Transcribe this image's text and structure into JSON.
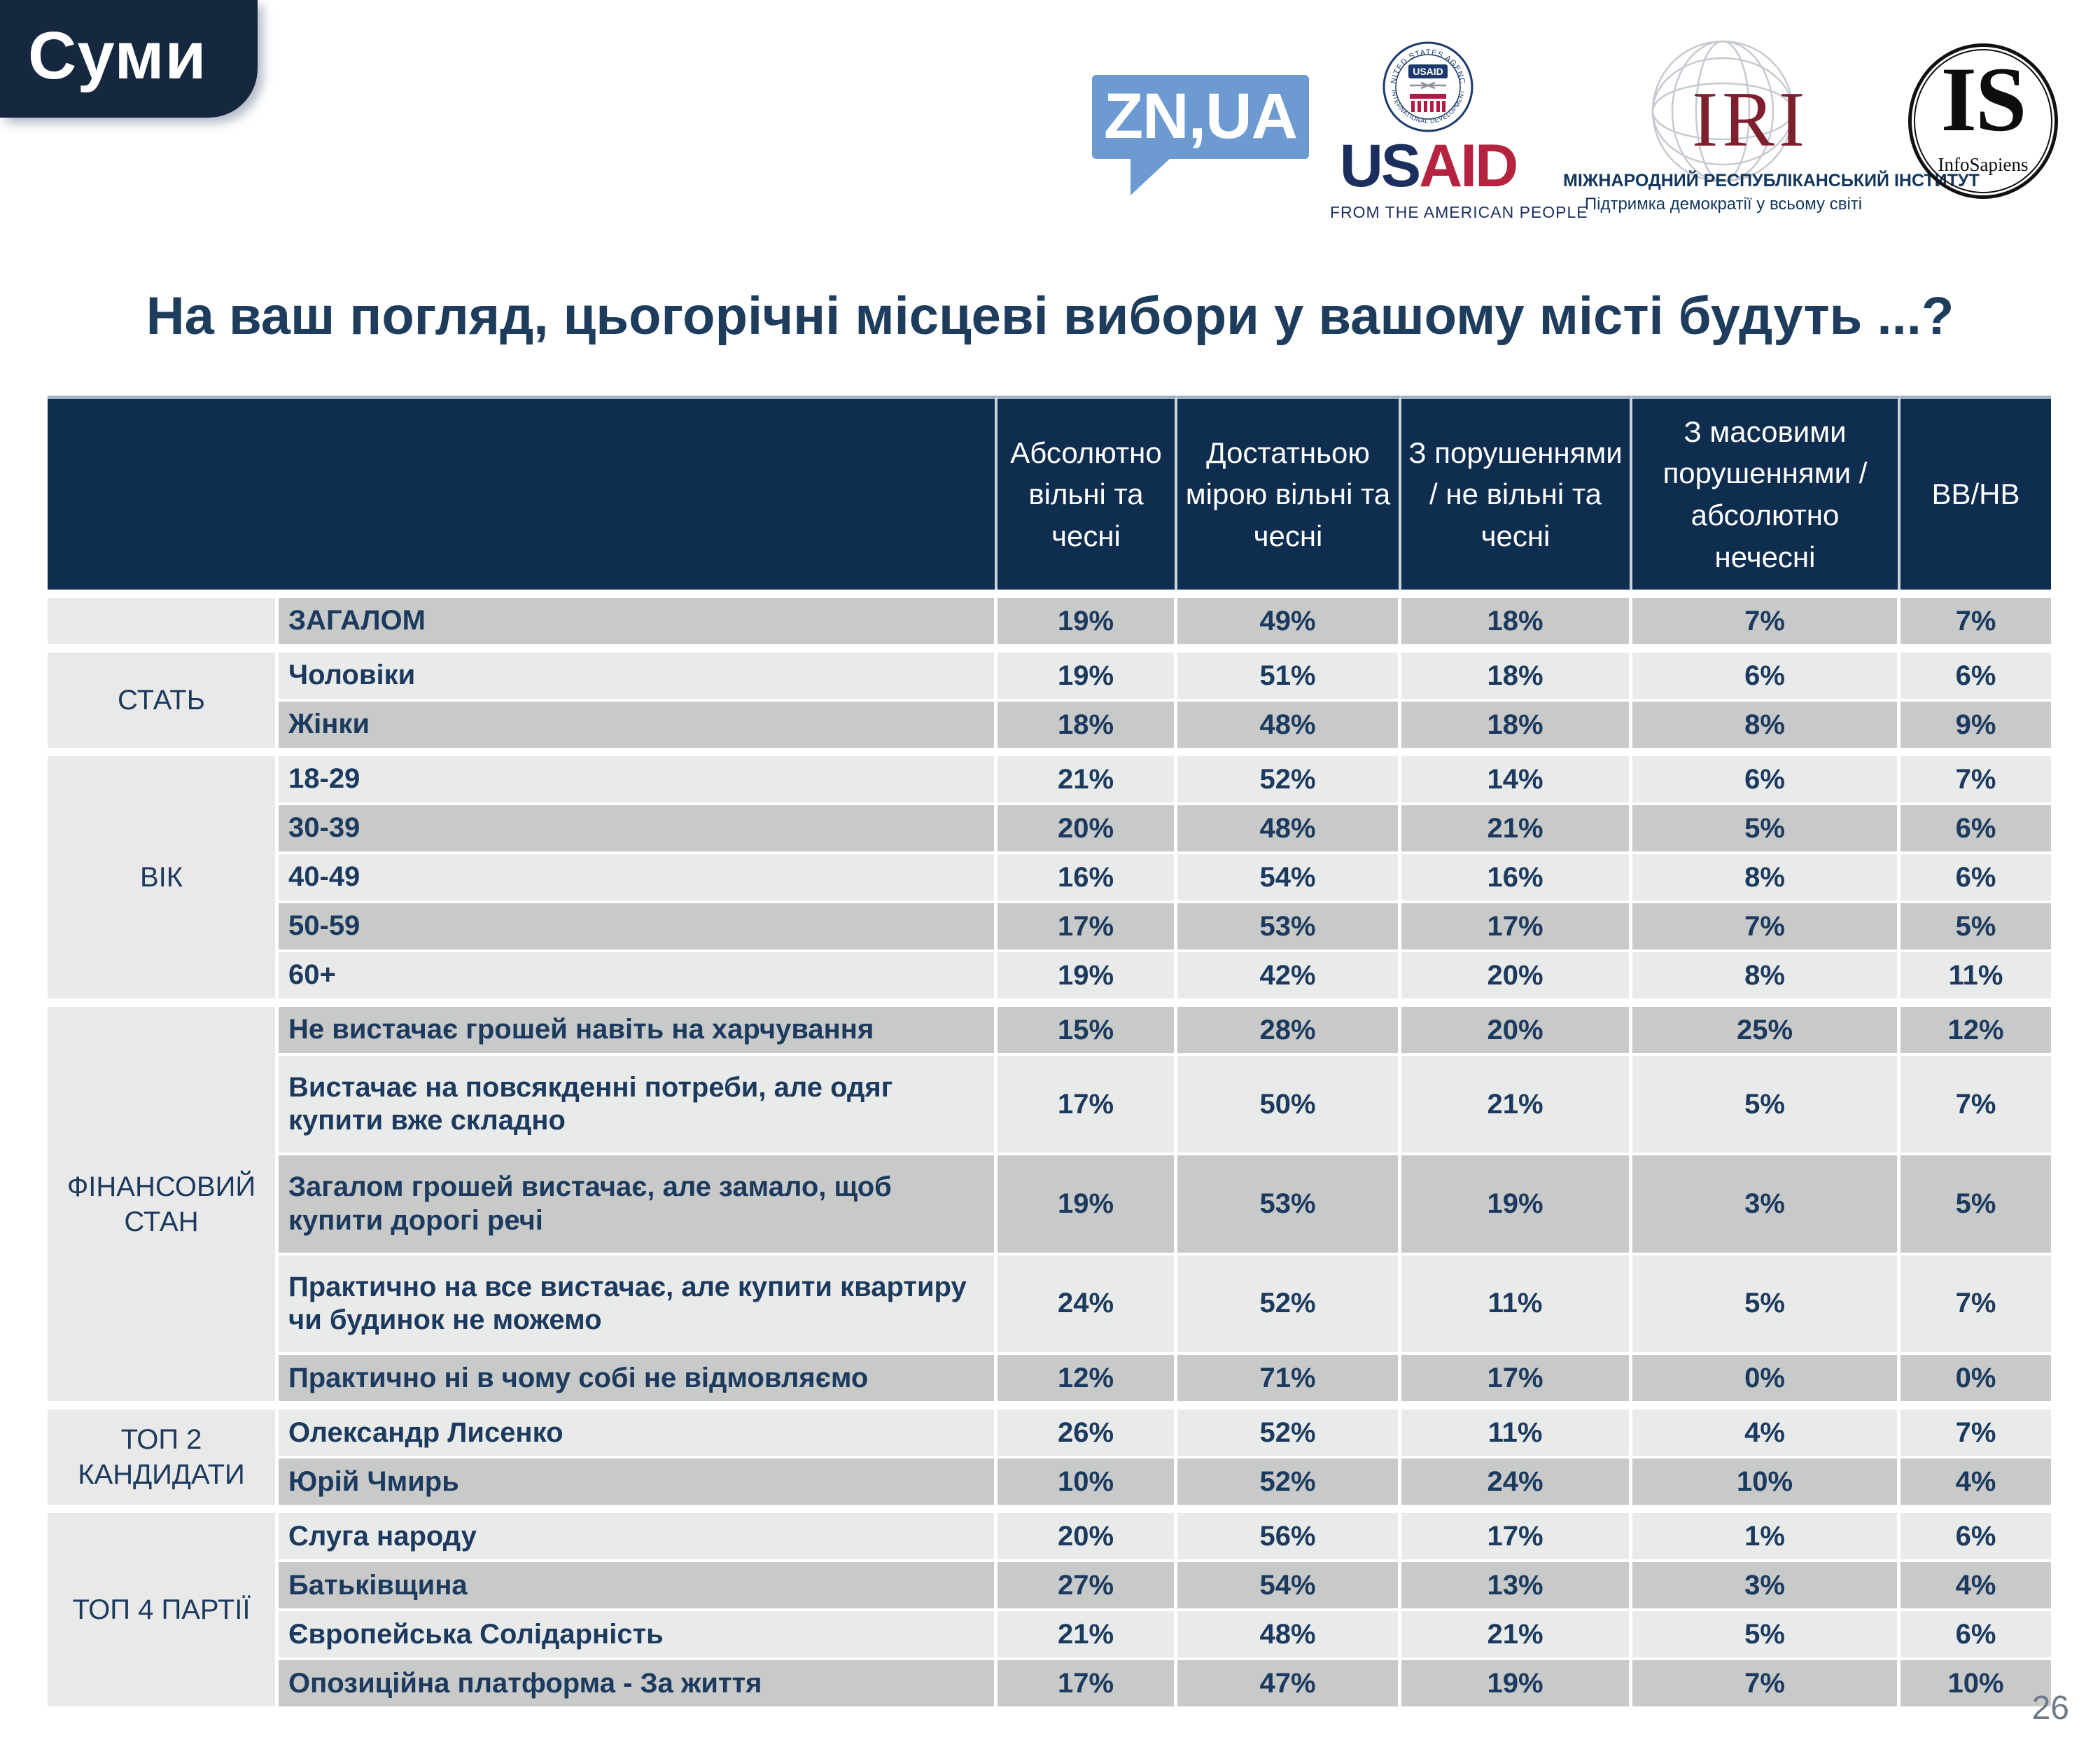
{
  "slide": {
    "tab": "Суми",
    "title": "На ваш погляд, цьогорічні місцеві вибори у вашому місті будуть ...?",
    "page_number": "26"
  },
  "logos": {
    "znua": {
      "wordmark": "ZN,UA"
    },
    "usaid": {
      "seal_top": "UNITED STATES AGENCY",
      "seal_bottom": "INTERNATIONAL DEVELOPMENT",
      "seal_center": "USAID",
      "wordmark_us": "US",
      "wordmark_aid": "AID",
      "tagline": "FROM THE AMERICAN PEOPLE"
    },
    "iri": {
      "acronym": "IRI",
      "line1": "МІЖНАРОДНИЙ РЕСПУБЛІКАНСЬКИЙ ІНСТИТУТ",
      "line2": "Підтримка демократії у всьому світі"
    },
    "infosapiens": {
      "acronym": "IS",
      "name": "InfoSapiens"
    }
  },
  "colors": {
    "header_navy": "#0e2d4f",
    "tab_navy": "#15283f",
    "text_navy": "#1c3a5e",
    "stripe_dark": "#c8c9c9",
    "stripe_light": "#e9eaea",
    "group_col_gray": "#e9e9e9",
    "znua_blue": "#6d9bd1",
    "usaid_navy": "#1b2f5e",
    "usaid_red": "#b5233f",
    "iri_red": "#7d1f2d"
  },
  "table": {
    "columns": [
      "Абсолютно вільні та чесні",
      "Достатньою мірою вільні та чесні",
      "З порушеннями / не вільні та чесні",
      "З масовими порушеннями / абсолютно нечесні",
      "ВВ/НВ"
    ],
    "groups": [
      {
        "label": "",
        "rows": [
          {
            "label": "ЗАГАЛОМ",
            "values": [
              "19%",
              "49%",
              "18%",
              "7%",
              "7%"
            ]
          }
        ]
      },
      {
        "label": "СТАТЬ",
        "rows": [
          {
            "label": "Чоловіки",
            "values": [
              "19%",
              "51%",
              "18%",
              "6%",
              "6%"
            ]
          },
          {
            "label": "Жінки",
            "values": [
              "18%",
              "48%",
              "18%",
              "8%",
              "9%"
            ]
          }
        ]
      },
      {
        "label": "ВІК",
        "rows": [
          {
            "label": "18-29",
            "values": [
              "21%",
              "52%",
              "14%",
              "6%",
              "7%"
            ]
          },
          {
            "label": "30-39",
            "values": [
              "20%",
              "48%",
              "21%",
              "5%",
              "6%"
            ]
          },
          {
            "label": "40-49",
            "values": [
              "16%",
              "54%",
              "16%",
              "8%",
              "6%"
            ]
          },
          {
            "label": "50-59",
            "values": [
              "17%",
              "53%",
              "17%",
              "7%",
              "5%"
            ]
          },
          {
            "label": "60+",
            "values": [
              "19%",
              "42%",
              "20%",
              "8%",
              "11%"
            ]
          }
        ]
      },
      {
        "label": "ФІНАНСОВИЙ СТАН",
        "rows": [
          {
            "label": "Не вистачає грошей навіть на харчування",
            "values": [
              "15%",
              "28%",
              "20%",
              "25%",
              "12%"
            ]
          },
          {
            "label": "Вистачає на повсякденні потреби, але одяг купити вже складно",
            "values": [
              "17%",
              "50%",
              "21%",
              "5%",
              "7%"
            ]
          },
          {
            "label": "Загалом грошей вистачає, але замало, щоб купити дорогі речі",
            "values": [
              "19%",
              "53%",
              "19%",
              "3%",
              "5%"
            ]
          },
          {
            "label": "Практично на все вистачає, але купити квартиру чи будинок не можемо",
            "values": [
              "24%",
              "52%",
              "11%",
              "5%",
              "7%"
            ]
          },
          {
            "label": "Практично ні в чому собі не відмовляємо",
            "values": [
              "12%",
              "71%",
              "17%",
              "0%",
              "0%"
            ]
          }
        ]
      },
      {
        "label": "ТОП 2 КАНДИДАТИ",
        "rows": [
          {
            "label": "Олександр Лисенко",
            "values": [
              "26%",
              "52%",
              "11%",
              "4%",
              "7%"
            ]
          },
          {
            "label": "Юрій Чмирь",
            "values": [
              "10%",
              "52%",
              "24%",
              "10%",
              "4%"
            ]
          }
        ]
      },
      {
        "label": "ТОП 4 ПАРТІЇ",
        "rows": [
          {
            "label": "Слуга народу",
            "values": [
              "20%",
              "56%",
              "17%",
              "1%",
              "6%"
            ]
          },
          {
            "label": "Батьківщина",
            "values": [
              "27%",
              "54%",
              "13%",
              "3%",
              "4%"
            ]
          },
          {
            "label": "Європейська Солідарність",
            "values": [
              "21%",
              "48%",
              "21%",
              "5%",
              "6%"
            ]
          },
          {
            "label": "Опозиційна платформа - За життя",
            "values": [
              "17%",
              "47%",
              "19%",
              "7%",
              "10%"
            ]
          }
        ]
      }
    ]
  }
}
